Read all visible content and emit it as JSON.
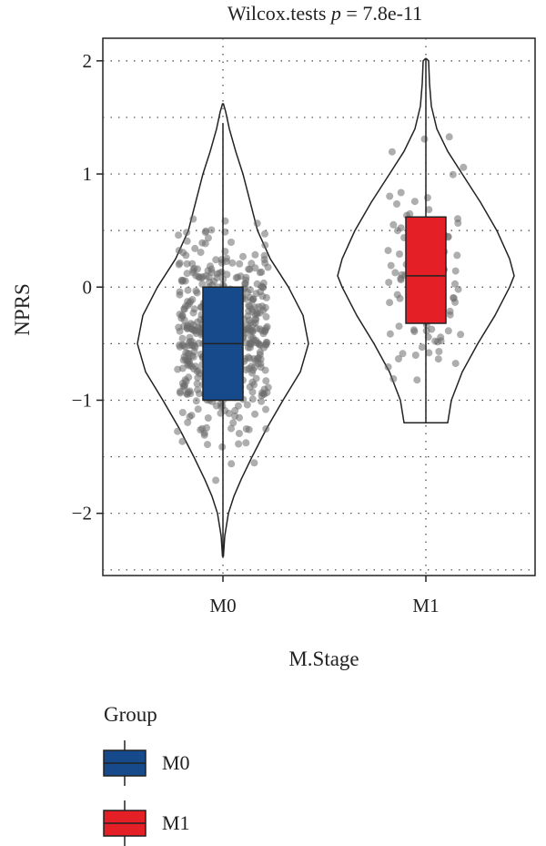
{
  "chart_data": {
    "type": "violin",
    "title": "Wilcox.tests p = 7.8e-11",
    "title_prefix": "Wilcox.tests ",
    "title_p": "p",
    "title_value": " = 7.8e-11",
    "xlabel": "M.Stage",
    "ylabel": "NPRS",
    "ylim": [
      -2.55,
      2.2
    ],
    "yticks": [
      2,
      1,
      0,
      -1,
      -2
    ],
    "ytick_labels": [
      "2",
      "1",
      "0",
      "−1",
      "−2"
    ],
    "grid": "dotted",
    "categories": [
      "M0",
      "M1"
    ],
    "groups": [
      {
        "name": "M0",
        "color": "#174A8B",
        "box": {
          "q1": -1.0,
          "median": -0.5,
          "q3": 0.0,
          "whisker_low": -2.38,
          "whisker_high": 1.45
        },
        "violin_range": [
          -2.38,
          1.62
        ],
        "jitter_count": 520
      },
      {
        "name": "M1",
        "color": "#E41F26",
        "box": {
          "q1": -0.32,
          "median": 0.1,
          "q3": 0.62,
          "whisker_low": -1.2,
          "whisker_high": 2.02
        },
        "violin_range": [
          -1.2,
          2.02
        ],
        "jitter_count": 90
      }
    ],
    "legend": {
      "title": "Group",
      "placement": "bottom-left",
      "items": [
        {
          "label": "M0",
          "color": "#174A8B"
        },
        {
          "label": "M1",
          "color": "#E41F26"
        }
      ]
    }
  }
}
